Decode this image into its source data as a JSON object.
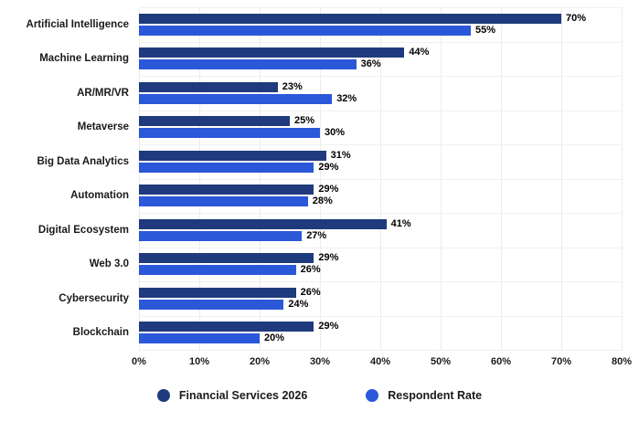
{
  "chart_data": {
    "type": "bar",
    "orientation": "horizontal",
    "title": "",
    "xlabel": "",
    "ylabel": "",
    "xlim": [
      0,
      80
    ],
    "x_ticks": [
      "0%",
      "10%",
      "20%",
      "30%",
      "40%",
      "50%",
      "60%",
      "70%",
      "80%"
    ],
    "grid": true,
    "legend_position": "bottom",
    "value_suffix": "%",
    "categories": [
      "Artificial Intelligence",
      "Machine Learning",
      "AR/MR/VR",
      "Metaverse",
      "Big Data Analytics",
      "Automation",
      "Digital Ecosystem",
      "Web 3.0",
      "Cybersecurity",
      "Blockchain"
    ],
    "series": [
      {
        "name": "Financial Services 2026",
        "color": "#1f3b7d",
        "values": [
          70,
          44,
          23,
          25,
          31,
          29,
          41,
          29,
          26,
          29
        ]
      },
      {
        "name": "Respondent Rate",
        "color": "#2b57d9",
        "values": [
          55,
          36,
          32,
          30,
          29,
          28,
          27,
          26,
          24,
          20
        ]
      }
    ]
  },
  "colors": {
    "grid_vertical": "#ececec",
    "grid_horizontal": "#f0f0f0",
    "text": "#1a1a1a",
    "background": "#ffffff"
  }
}
